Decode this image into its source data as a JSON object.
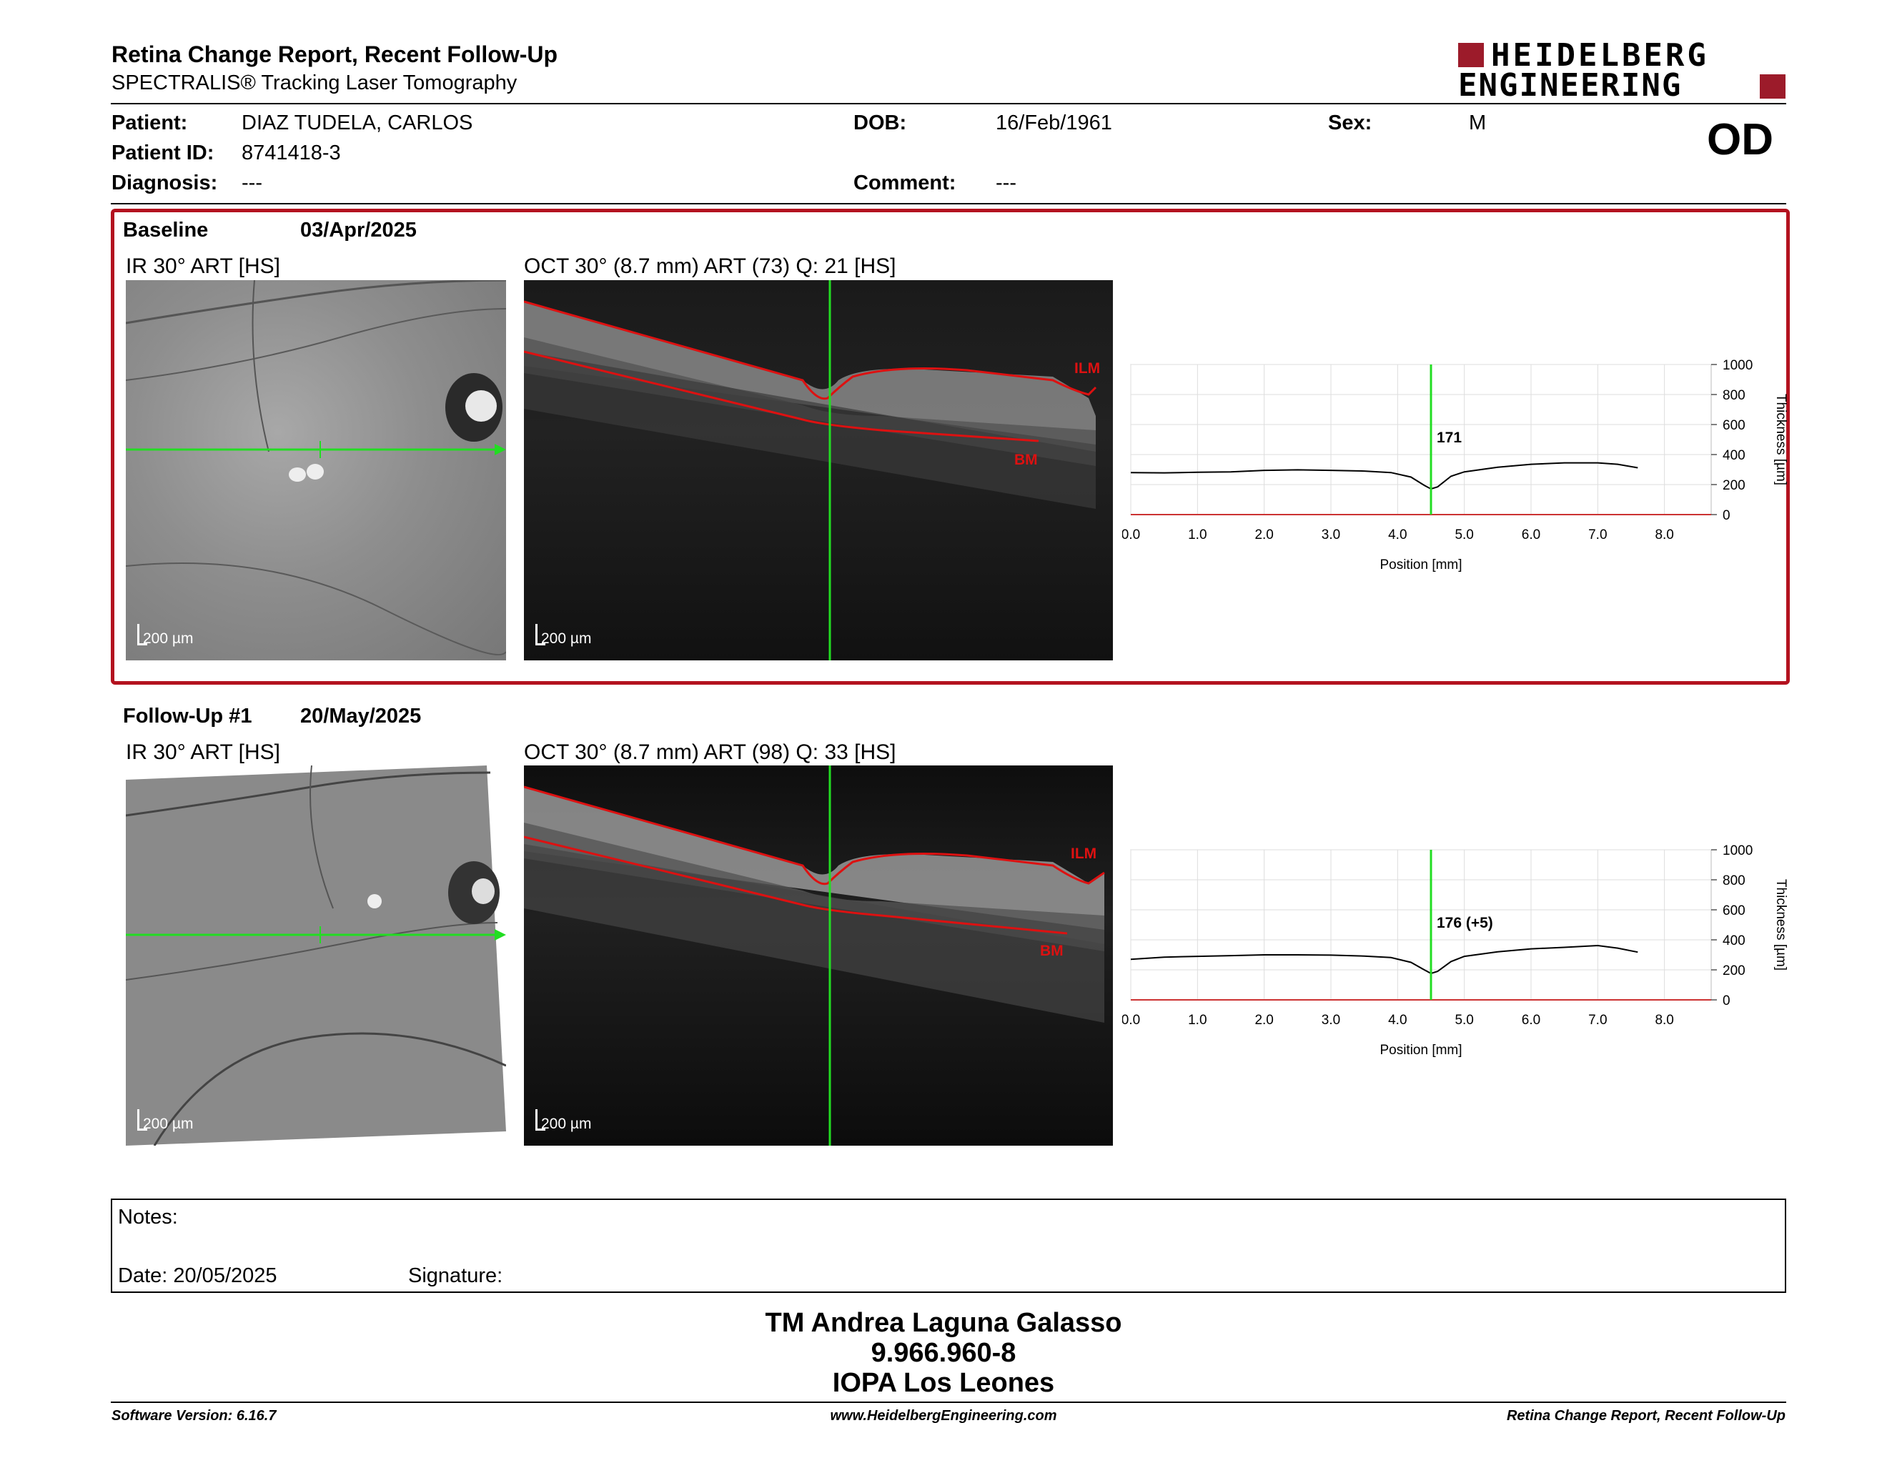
{
  "header": {
    "title": "Retina Change Report, Recent Follow-Up",
    "subtitle": "SPECTRALIS® Tracking Laser Tomography",
    "logo_line1": "HEIDELBERG",
    "logo_line2": "ENGINEERING",
    "brand_color": "#9c1b2a",
    "eye": "OD"
  },
  "patient": {
    "patient_label": "Patient:",
    "patient_value": "DIAZ TUDELA, CARLOS",
    "id_label": "Patient ID:",
    "id_value": "8741418-3",
    "diagnosis_label": "Diagnosis:",
    "diagnosis_value": "---",
    "dob_label": "DOB:",
    "dob_value": "16/Feb/1961",
    "comment_label": "Comment:",
    "comment_value": "---",
    "sex_label": "Sex:",
    "sex_value": "M"
  },
  "baseline": {
    "label": "Baseline",
    "date": "03/Apr/2025",
    "ir_title": "IR 30° ART [HS]",
    "oct_title": "OCT 30° (8.7 mm) ART (73) Q: 21 [HS]",
    "scale": "200 µm",
    "ilm": "ILM",
    "bm": "BM",
    "thickness_value": "171"
  },
  "followup": {
    "label": "Follow-Up #1",
    "date": "20/May/2025",
    "ir_title": "IR 30° ART [HS]",
    "oct_title": "OCT 30° (8.7 mm) ART (98) Q: 33 [HS]",
    "scale": "200 µm",
    "ilm": "ILM",
    "bm": "BM",
    "thickness_value": "176 (+5)"
  },
  "chart_data": [
    {
      "type": "line",
      "xlabel": "Position [mm]",
      "ylabel": "Thickness [µm]",
      "xlim": [
        0,
        8.7
      ],
      "ylim": [
        0,
        1000
      ],
      "x_ticks": [
        "0.0",
        "1.0",
        "2.0",
        "3.0",
        "4.0",
        "5.0",
        "6.0",
        "7.0",
        "8.0"
      ],
      "y_ticks": [
        "0",
        "200",
        "400",
        "600",
        "800",
        "1000"
      ],
      "marker_x": 4.5,
      "series": [
        {
          "x": [
            0,
            0.5,
            1,
            1.5,
            2,
            2.5,
            3,
            3.5,
            3.9,
            4.2,
            4.4,
            4.5,
            4.6,
            4.8,
            5,
            5.5,
            6,
            6.5,
            7,
            7.3,
            7.6
          ],
          "y": [
            280,
            278,
            282,
            285,
            295,
            298,
            295,
            290,
            280,
            250,
            195,
            171,
            185,
            255,
            285,
            315,
            335,
            345,
            345,
            335,
            312
          ]
        }
      ]
    },
    {
      "type": "line",
      "xlabel": "Position [mm]",
      "ylabel": "Thickness [µm]",
      "xlim": [
        0,
        8.7
      ],
      "ylim": [
        0,
        1000
      ],
      "x_ticks": [
        "0.0",
        "1.0",
        "2.0",
        "3.0",
        "4.0",
        "5.0",
        "6.0",
        "7.0",
        "8.0"
      ],
      "y_ticks": [
        "0",
        "200",
        "400",
        "600",
        "800",
        "1000"
      ],
      "marker_x": 4.5,
      "series": [
        {
          "x": [
            0,
            0.5,
            1,
            1.5,
            2,
            2.5,
            3,
            3.5,
            3.9,
            4.2,
            4.4,
            4.5,
            4.6,
            4.8,
            5,
            5.5,
            6,
            6.5,
            7,
            7.3,
            7.6
          ],
          "y": [
            270,
            285,
            290,
            295,
            300,
            300,
            298,
            292,
            282,
            250,
            200,
            176,
            190,
            255,
            290,
            320,
            340,
            350,
            362,
            345,
            318
          ]
        }
      ]
    }
  ],
  "notes": {
    "notes_label": "Notes:",
    "date_label": "Date: 20/05/2025",
    "signature_label": "Signature:"
  },
  "signer": {
    "name": "TM Andrea Laguna Galasso",
    "id": "9.966.960-8",
    "org": "IOPA Los Leones"
  },
  "footer": {
    "version": "Software Version: 6.16.7",
    "url": "www.HeidelbergEngineering.com",
    "report": "Retina Change Report, Recent Follow-Up"
  }
}
